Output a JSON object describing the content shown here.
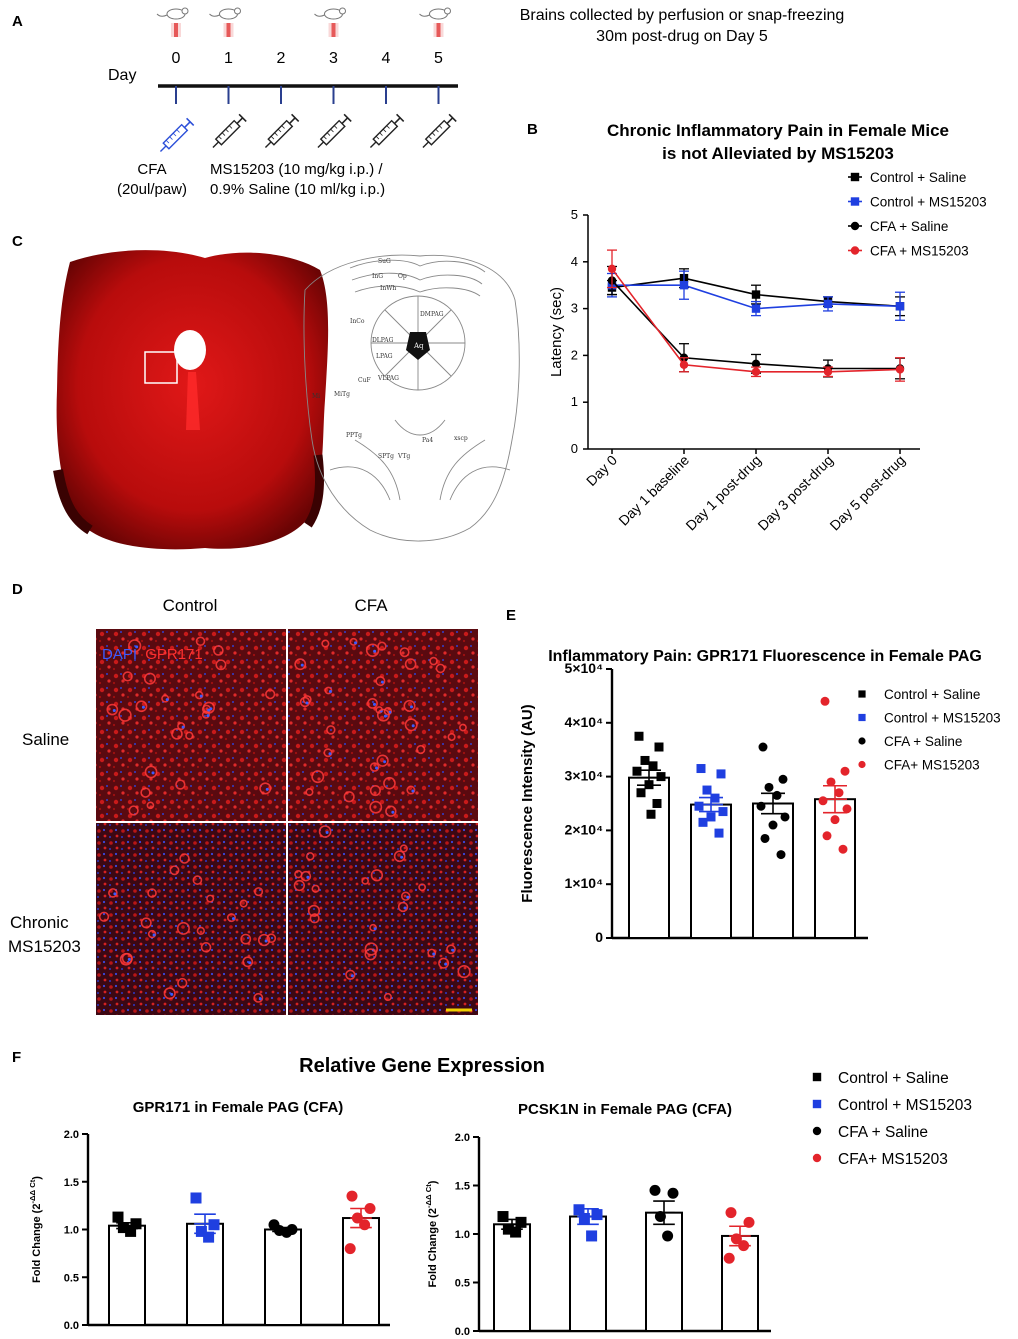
{
  "panel_letters": {
    "a": "A",
    "b": "B",
    "c": "C",
    "d": "D",
    "e": "E",
    "f": "F"
  },
  "panel_a": {
    "day_label": "Day",
    "days": [
      "0",
      "1",
      "2",
      "3",
      "4",
      "5"
    ],
    "mouse_days": [
      "0",
      "1",
      "3",
      "5"
    ],
    "collection_note_line1": "Brains collected by perfusion or snap-freezing",
    "collection_note_line2": "30m post-drug on Day 5",
    "cfa_line1": "CFA",
    "cfa_line2": "(20ul/paw)",
    "drug_line1": "MS15203 (10 mg/kg i.p.) /",
    "drug_line2": "0.9% Saline (10 ml/kg i.p.)",
    "colors": {
      "cfa_syringe": "#2c4fd8",
      "drug_syringe": "#222222",
      "mouse_mark": "#e23a3a",
      "timeline": "#111111",
      "day_tick": "#2a3f8f"
    }
  },
  "panel_c": {
    "atlas_labels": [
      "SuG",
      "InG",
      "Op",
      "InWh",
      "DMPAG",
      "InCo",
      "DLPAG",
      "LPAG",
      "Aq",
      "CuF",
      "VLPAG",
      "MiTg",
      "PPTg",
      "Pa4",
      "SPTg",
      "VTg",
      "xscp",
      "Mi"
    ],
    "colors": {
      "section": "#c01010",
      "section_dark": "#8a0606"
    }
  },
  "panel_d": {
    "col_headers": [
      "Control",
      "CFA"
    ],
    "row_labels": [
      "Saline",
      "Chronic\nMS15203"
    ],
    "legend_dapi": "DAPI",
    "legend_gpr171": "GPR171",
    "colors": {
      "dapi": "#3a5cff",
      "gpr171": "#e02020",
      "scale_bar": "#f0d000"
    }
  },
  "panel_f_title": "Relative Gene Expression",
  "chart_data": [
    {
      "id": "B",
      "type": "line",
      "title": "Chronic Inflammatory Pain in Female Mice\nis not Alleviated by MS15203",
      "xlabel": "",
      "ylabel": "Latency (sec)",
      "categories": [
        "Day 0",
        "Day 1 baseline",
        "Day 1 post-drug",
        "Day 3 post-drug",
        "Day 5 post-drug"
      ],
      "ylim": [
        0,
        5
      ],
      "yticks": [
        "0",
        "1",
        "2",
        "3",
        "4",
        "5"
      ],
      "legend_position": "top-right",
      "series": [
        {
          "name": "Control + Saline",
          "color": "#000000",
          "marker": "square",
          "values": [
            3.45,
            3.65,
            3.3,
            3.15,
            3.05
          ],
          "errors": [
            0.15,
            0.2,
            0.2,
            0.1,
            0.2
          ]
        },
        {
          "name": "Control + MS15203",
          "color": "#1f3fe0",
          "marker": "square",
          "values": [
            3.5,
            3.5,
            3.0,
            3.1,
            3.05
          ],
          "errors": [
            0.25,
            0.3,
            0.15,
            0.15,
            0.3
          ]
        },
        {
          "name": "CFA + Saline",
          "color": "#000000",
          "marker": "circle",
          "values": [
            3.6,
            1.95,
            1.82,
            1.72,
            1.72
          ],
          "errors": [
            0.3,
            0.3,
            0.2,
            0.18,
            0.22
          ]
        },
        {
          "name": "CFA + MS15203",
          "color": "#e3242b",
          "marker": "circle",
          "values": [
            3.85,
            1.8,
            1.65,
            1.65,
            1.7
          ],
          "errors": [
            0.4,
            0.15,
            0.1,
            0.1,
            0.25
          ]
        }
      ]
    },
    {
      "id": "E",
      "type": "bar",
      "title": "Inflammatory Pain: GPR171 Fluorescence in Female PAG",
      "xlabel": "",
      "ylabel": "Fluorescence Intensity (AU)",
      "ylim": [
        0,
        50000
      ],
      "yticks": [
        "0",
        "1×10⁴",
        "2×10⁴",
        "3×10⁴",
        "4×10⁴",
        "5×10⁴"
      ],
      "legend_position": "right",
      "categories": [
        "Control + Saline",
        "Control + MS15203",
        "CFA + Saline",
        "CFA+ MS15203"
      ],
      "series": [
        {
          "name": "Control + Saline",
          "color": "#000000",
          "marker": "square",
          "mean": 29800,
          "sem": 1400,
          "points": [
            37500,
            35500,
            33000,
            32000,
            31000,
            30000,
            28500,
            27000,
            25000,
            23000
          ]
        },
        {
          "name": "Control + MS15203",
          "color": "#1f3fe0",
          "marker": "square",
          "mean": 24800,
          "sem": 1300,
          "points": [
            31500,
            30500,
            27500,
            26000,
            24500,
            23500,
            22500,
            21500,
            19500
          ]
        },
        {
          "name": "CFA + Saline",
          "color": "#000000",
          "marker": "circle",
          "mean": 25000,
          "sem": 1900,
          "points": [
            35500,
            29500,
            28000,
            26500,
            24500,
            22500,
            21000,
            18500,
            15500
          ]
        },
        {
          "name": "CFA+ MS15203",
          "color": "#e3242b",
          "marker": "circle",
          "mean": 25800,
          "sem": 2500,
          "points": [
            44000,
            31000,
            29000,
            27000,
            25500,
            24000,
            22000,
            19000,
            16500
          ]
        }
      ]
    },
    {
      "id": "F1",
      "type": "bar",
      "title": "GPR171 in Female PAG (CFA)",
      "xlabel": "",
      "ylabel": "Fold Change (2",
      "ylabel_sup": "-ΔΔ Ct",
      "ylabel_close": ")",
      "ylim": [
        0,
        2.0
      ],
      "yticks": [
        "0.0",
        "0.5",
        "1.0",
        "1.5",
        "2.0"
      ],
      "categories": [
        "Control + Saline",
        "Control + MS15203",
        "CFA + Saline",
        "CFA+ MS15203"
      ],
      "series": [
        {
          "name": "Control + Saline",
          "color": "#000000",
          "marker": "square",
          "mean": 1.04,
          "sem": 0.03,
          "points": [
            1.13,
            1.06,
            1.02,
            0.98
          ]
        },
        {
          "name": "Control + MS15203",
          "color": "#1f3fe0",
          "marker": "square",
          "mean": 1.06,
          "sem": 0.1,
          "points": [
            1.33,
            1.05,
            0.98,
            0.92
          ]
        },
        {
          "name": "CFA + Saline",
          "color": "#000000",
          "marker": "circle",
          "mean": 1.0,
          "sem": 0.02,
          "points": [
            1.05,
            1.0,
            0.99,
            0.97
          ]
        },
        {
          "name": "CFA+ MS15203",
          "color": "#e3242b",
          "marker": "circle",
          "mean": 1.12,
          "sem": 0.1,
          "points": [
            1.35,
            1.22,
            1.12,
            1.05,
            0.8
          ]
        }
      ]
    },
    {
      "id": "F2",
      "type": "bar",
      "title": "PCSK1N in Female PAG (CFA)",
      "xlabel": "",
      "ylabel": "Fold Change (2",
      "ylabel_sup": "-ΔΔ Ct",
      "ylabel_close": ")",
      "ylim": [
        0,
        2.0
      ],
      "yticks": [
        "0.0",
        "0.5",
        "1.0",
        "1.5",
        "2.0"
      ],
      "categories": [
        "Control + Saline",
        "Control + MS15203",
        "CFA + Saline",
        "CFA+ MS15203"
      ],
      "series": [
        {
          "name": "Control + Saline",
          "color": "#000000",
          "marker": "square",
          "mean": 1.1,
          "sem": 0.05,
          "points": [
            1.18,
            1.12,
            1.05,
            1.02
          ]
        },
        {
          "name": "Control + MS15203",
          "color": "#1f3fe0",
          "marker": "square",
          "mean": 1.18,
          "sem": 0.08,
          "points": [
            1.25,
            1.2,
            1.16,
            0.98
          ]
        },
        {
          "name": "CFA + Saline",
          "color": "#000000",
          "marker": "circle",
          "mean": 1.22,
          "sem": 0.12,
          "points": [
            1.45,
            1.42,
            1.18,
            0.98
          ]
        },
        {
          "name": "CFA+ MS15203",
          "color": "#e3242b",
          "marker": "circle",
          "mean": 0.98,
          "sem": 0.1,
          "points": [
            1.22,
            1.12,
            0.95,
            0.88,
            0.75
          ]
        }
      ]
    }
  ]
}
